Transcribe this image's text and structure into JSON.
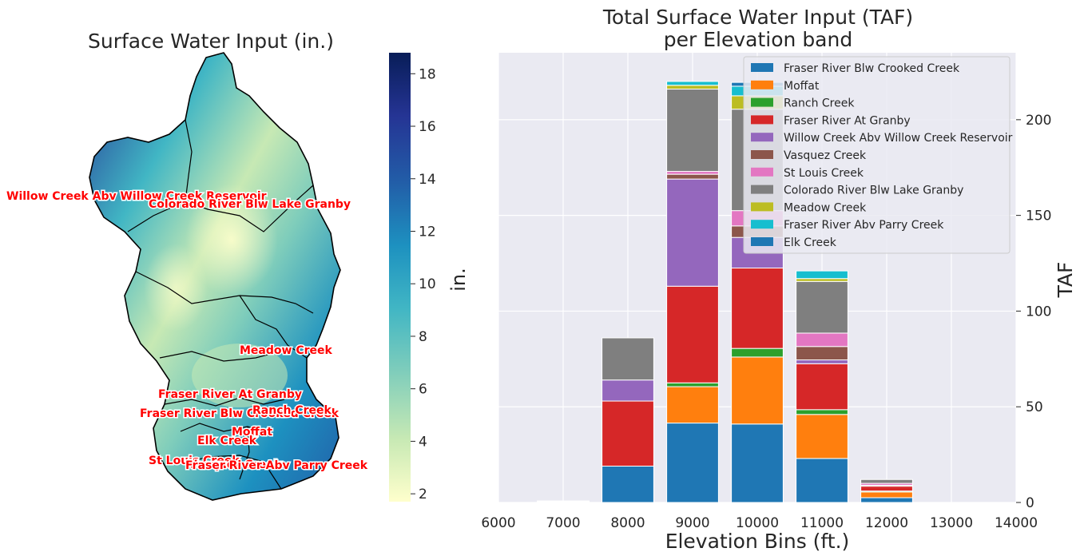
{
  "map_panel": {
    "title": "Surface Water Input (in.)",
    "colorbar": {
      "label": "in.",
      "ticks": [
        "2",
        "4",
        "6",
        "8",
        "10",
        "12",
        "14",
        "16",
        "18"
      ],
      "min": 1.7,
      "max": 18.8,
      "colors": [
        "#ffffcc",
        "#c7e9b4",
        "#7fcdbb",
        "#41b6c4",
        "#1d91c0",
        "#225ea8",
        "#253494",
        "#081d58"
      ]
    },
    "basin_labels": [
      "Willow Creek Abv Willow Creek Reservoir",
      "Colorado River Blw Lake Granby",
      "Meadow Creek",
      "Fraser River At Granby",
      "Fraser River Blw Crooked Creek",
      "Ranch Creek",
      "Moffat",
      "Elk Creek",
      "St Louis Creek",
      "Vasquez Creek",
      "Fraser River Abv Parry Creek"
    ]
  },
  "chart_data": {
    "type": "bar",
    "stacked": true,
    "title": "Total Surface Water Input (TAF)",
    "subtitle": "per Elevation band",
    "xlabel": "Elevation Bins (ft.)",
    "ylabel": "TAF",
    "xlim": [
      6000,
      14000
    ],
    "ylim": [
      0,
      235
    ],
    "xticks": [
      "6000",
      "7000",
      "8000",
      "9000",
      "10000",
      "11000",
      "12000",
      "13000",
      "14000"
    ],
    "yticks": [
      "0",
      "50",
      "100",
      "150",
      "200"
    ],
    "grid": true,
    "legend_position": "top-right",
    "categories": [
      7000,
      8000,
      9000,
      10000,
      11000,
      12000
    ],
    "series": [
      {
        "name": "Fraser River Blw Crooked Creek",
        "color": "#1f77b4",
        "values": [
          0.3,
          19,
          41.5,
          41,
          23,
          2.5
        ]
      },
      {
        "name": "Moffat",
        "color": "#ff7f0e",
        "values": [
          0,
          0,
          19,
          35,
          23,
          3
        ]
      },
      {
        "name": "Ranch Creek",
        "color": "#2ca02c",
        "values": [
          0,
          0,
          2,
          4.5,
          2.5,
          0.5
        ]
      },
      {
        "name": "Fraser River At Granby",
        "color": "#d62728",
        "values": [
          0.2,
          34,
          50.5,
          42,
          24,
          2.5
        ]
      },
      {
        "name": "Willow Creek Abv Willow Creek Reservoir",
        "color": "#9467bd",
        "values": [
          0,
          11,
          56,
          16,
          2,
          0
        ]
      },
      {
        "name": "Vasquez Creek",
        "color": "#8c564b",
        "values": [
          0,
          0,
          2.5,
          6,
          7,
          0.5
        ]
      },
      {
        "name": "St Louis Creek",
        "color": "#e377c2",
        "values": [
          0,
          0,
          1.5,
          8,
          7,
          1
        ]
      },
      {
        "name": "Colorado River Blw Lake Granby",
        "color": "#7f7f7f",
        "values": [
          0.3,
          22,
          43,
          53,
          27,
          2
        ]
      },
      {
        "name": "Meadow Creek",
        "color": "#bcbd22",
        "values": [
          0,
          0,
          2,
          7,
          1.5,
          0
        ]
      },
      {
        "name": "Fraser River Abv Parry Creek",
        "color": "#17becf",
        "values": [
          0,
          0,
          2,
          5,
          4,
          0
        ]
      },
      {
        "name": "Elk Creek",
        "color": "#1f77b4",
        "values": [
          0,
          0,
          0,
          2,
          0,
          0
        ]
      }
    ]
  }
}
